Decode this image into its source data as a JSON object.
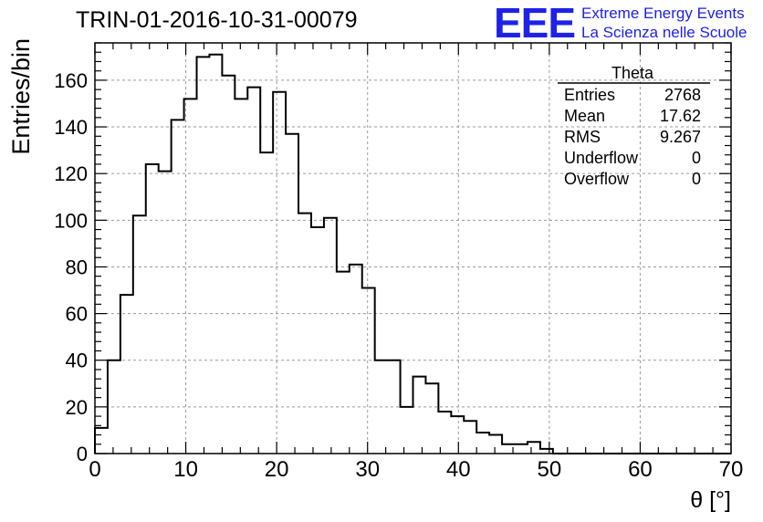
{
  "header": {
    "title": "TRIN-01-2016-10-31-00079"
  },
  "logo": {
    "mark": "EEE",
    "line1": "Extreme Energy Events",
    "line2": "La Scienza nelle Scuole",
    "color": "#1e22e6"
  },
  "stats": {
    "name": "Theta",
    "rows": [
      {
        "label": "Entries",
        "value": "2768"
      },
      {
        "label": "Mean",
        "value": "17.62"
      },
      {
        "label": "RMS",
        "value": "9.267"
      },
      {
        "label": "Underflow",
        "value": "0"
      },
      {
        "label": "Overflow",
        "value": "0"
      }
    ]
  },
  "chart_data": {
    "type": "histogram",
    "xlabel": "θ [°]",
    "ylabel": "Entries/bin",
    "xlim": [
      0,
      70
    ],
    "ylim": [
      0,
      176
    ],
    "grid": true,
    "xticks": [
      0,
      10,
      20,
      30,
      40,
      50,
      60,
      70
    ],
    "yticks": [
      0,
      20,
      40,
      60,
      80,
      100,
      120,
      140,
      160
    ],
    "bin_width": 1.4,
    "values": [
      11,
      40,
      68,
      102,
      124,
      121,
      143,
      152,
      170,
      171,
      162,
      152,
      157,
      129,
      155,
      137,
      103,
      97,
      101,
      78,
      81,
      71,
      40,
      40,
      20,
      33,
      30,
      18,
      16,
      14,
      9,
      8,
      4,
      4,
      5,
      2,
      0,
      0,
      0,
      0,
      0,
      0,
      0,
      0,
      0,
      0,
      0,
      0,
      0,
      0
    ]
  }
}
